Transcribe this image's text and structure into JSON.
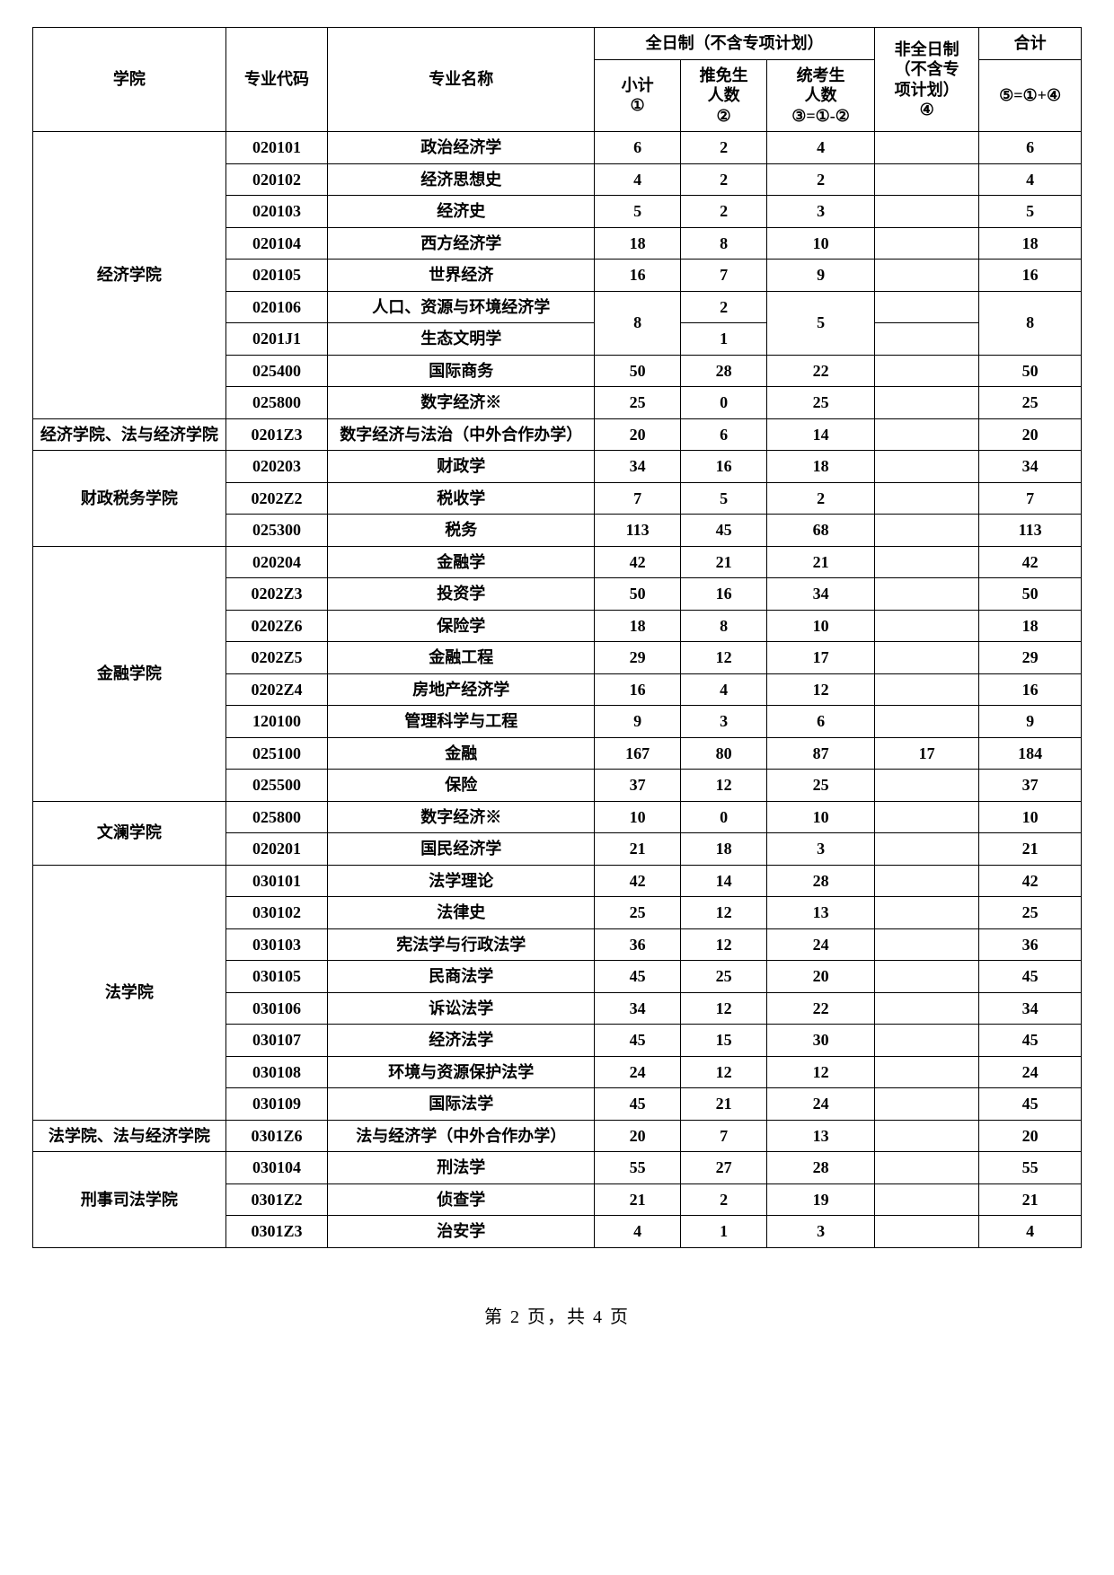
{
  "header": {
    "school": "学院",
    "code": "专业代码",
    "major": "专业名称",
    "ft_group": "全日制（不含专项计划）",
    "pt_group": "非全日制\n（不含专\n项计划）\n④",
    "total_group": "合计",
    "subtotal": "小计\n①",
    "rec": "推免生\n人数\n②",
    "exam": "统考生\n人数\n③=①-②",
    "total": "⑤=①+④"
  },
  "rows": [
    {
      "school": "经济学院",
      "code": "020101",
      "major": "政治经济学",
      "a": "6",
      "b": "2",
      "c": "4",
      "d": "",
      "e": "6"
    },
    {
      "school": "",
      "code": "020102",
      "major": "经济思想史",
      "a": "4",
      "b": "2",
      "c": "2",
      "d": "",
      "e": "4"
    },
    {
      "school": "",
      "code": "020103",
      "major": "经济史",
      "a": "5",
      "b": "2",
      "c": "3",
      "d": "",
      "e": "5"
    },
    {
      "school": "",
      "code": "020104",
      "major": "西方经济学",
      "a": "18",
      "b": "8",
      "c": "10",
      "d": "",
      "e": "18"
    },
    {
      "school": "",
      "code": "020105",
      "major": "世界经济",
      "a": "16",
      "b": "7",
      "c": "9",
      "d": "",
      "e": "16"
    },
    {
      "school": "",
      "code": "020106",
      "major": "人口、资源与环境经济学",
      "a": "8",
      "b": "2",
      "c": "5",
      "d": "",
      "e": "8",
      "merge_ac_e_rows": 2
    },
    {
      "school": "",
      "code": "0201J1",
      "major": "生态文明学",
      "a": "",
      "b": "1",
      "c": "",
      "d": "",
      "e": ""
    },
    {
      "school": "",
      "code": "025400",
      "major": "国际商务",
      "a": "50",
      "b": "28",
      "c": "22",
      "d": "",
      "e": "50"
    },
    {
      "school": "",
      "code": "025800",
      "major": "数字经济※",
      "a": "25",
      "b": "0",
      "c": "25",
      "d": "",
      "e": "25"
    },
    {
      "school": "经济学院、法与经济学院",
      "code": "0201Z3",
      "major": "数字经济与法治（中外合作办学）",
      "a": "20",
      "b": "6",
      "c": "14",
      "d": "",
      "e": "20"
    },
    {
      "school": "财政税务学院",
      "code": "020203",
      "major": "财政学",
      "a": "34",
      "b": "16",
      "c": "18",
      "d": "",
      "e": "34"
    },
    {
      "school": "",
      "code": "0202Z2",
      "major": "税收学",
      "a": "7",
      "b": "5",
      "c": "2",
      "d": "",
      "e": "7"
    },
    {
      "school": "",
      "code": "025300",
      "major": "税务",
      "a": "113",
      "b": "45",
      "c": "68",
      "d": "",
      "e": "113"
    },
    {
      "school": "金融学院",
      "code": "020204",
      "major": "金融学",
      "a": "42",
      "b": "21",
      "c": "21",
      "d": "",
      "e": "42"
    },
    {
      "school": "",
      "code": "0202Z3",
      "major": "投资学",
      "a": "50",
      "b": "16",
      "c": "34",
      "d": "",
      "e": "50"
    },
    {
      "school": "",
      "code": "0202Z6",
      "major": "保险学",
      "a": "18",
      "b": "8",
      "c": "10",
      "d": "",
      "e": "18"
    },
    {
      "school": "",
      "code": "0202Z5",
      "major": "金融工程",
      "a": "29",
      "b": "12",
      "c": "17",
      "d": "",
      "e": "29"
    },
    {
      "school": "",
      "code": "0202Z4",
      "major": "房地产经济学",
      "a": "16",
      "b": "4",
      "c": "12",
      "d": "",
      "e": "16"
    },
    {
      "school": "",
      "code": "120100",
      "major": "管理科学与工程",
      "a": "9",
      "b": "3",
      "c": "6",
      "d": "",
      "e": "9"
    },
    {
      "school": "",
      "code": "025100",
      "major": "金融",
      "a": "167",
      "b": "80",
      "c": "87",
      "d": "17",
      "e": "184"
    },
    {
      "school": "",
      "code": "025500",
      "major": "保险",
      "a": "37",
      "b": "12",
      "c": "25",
      "d": "",
      "e": "37"
    },
    {
      "school": "文澜学院",
      "code": "025800",
      "major": "数字经济※",
      "a": "10",
      "b": "0",
      "c": "10",
      "d": "",
      "e": "10"
    },
    {
      "school": "",
      "code": "020201",
      "major": "国民经济学",
      "a": "21",
      "b": "18",
      "c": "3",
      "d": "",
      "e": "21"
    },
    {
      "school": "法学院",
      "code": "030101",
      "major": "法学理论",
      "a": "42",
      "b": "14",
      "c": "28",
      "d": "",
      "e": "42"
    },
    {
      "school": "",
      "code": "030102",
      "major": "法律史",
      "a": "25",
      "b": "12",
      "c": "13",
      "d": "",
      "e": "25"
    },
    {
      "school": "",
      "code": "030103",
      "major": "宪法学与行政法学",
      "a": "36",
      "b": "12",
      "c": "24",
      "d": "",
      "e": "36"
    },
    {
      "school": "",
      "code": "030105",
      "major": "民商法学",
      "a": "45",
      "b": "25",
      "c": "20",
      "d": "",
      "e": "45"
    },
    {
      "school": "",
      "code": "030106",
      "major": "诉讼法学",
      "a": "34",
      "b": "12",
      "c": "22",
      "d": "",
      "e": "34"
    },
    {
      "school": "",
      "code": "030107",
      "major": "经济法学",
      "a": "45",
      "b": "15",
      "c": "30",
      "d": "",
      "e": "45"
    },
    {
      "school": "",
      "code": "030108",
      "major": "环境与资源保护法学",
      "a": "24",
      "b": "12",
      "c": "12",
      "d": "",
      "e": "24"
    },
    {
      "school": "",
      "code": "030109",
      "major": "国际法学",
      "a": "45",
      "b": "21",
      "c": "24",
      "d": "",
      "e": "45"
    },
    {
      "school": "法学院、法与经济学院",
      "code": "0301Z6",
      "major": "法与经济学（中外合作办学）",
      "a": "20",
      "b": "7",
      "c": "13",
      "d": "",
      "e": "20"
    },
    {
      "school": "刑事司法学院",
      "code": "030104",
      "major": "刑法学",
      "a": "55",
      "b": "27",
      "c": "28",
      "d": "",
      "e": "55"
    },
    {
      "school": "",
      "code": "0301Z2",
      "major": "侦查学",
      "a": "21",
      "b": "2",
      "c": "19",
      "d": "",
      "e": "21"
    },
    {
      "school": "",
      "code": "0301Z3",
      "major": "治安学",
      "a": "4",
      "b": "1",
      "c": "3",
      "d": "",
      "e": "4"
    }
  ],
  "school_spans": [
    9,
    1,
    3,
    8,
    2,
    8,
    1,
    3
  ],
  "footer": "第 2 页，共 4 页"
}
